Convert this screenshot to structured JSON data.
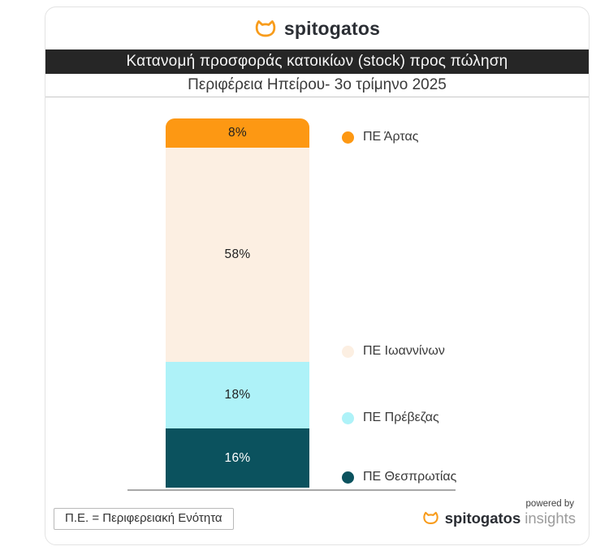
{
  "brand": {
    "logo_text": "spitogatos",
    "accent_color": "#F89C1C"
  },
  "header": {
    "banner_title": "Κατανομή προσφοράς κατοικίων (stock) προς πώληση",
    "subtitle": "Περιφέρεια Ηπείρου- 3ο τρίμηνο 2025"
  },
  "chart_data": {
    "type": "bar",
    "stacked": true,
    "orientation": "vertical",
    "title": "Κατανομή προσφοράς κατοικίων (stock) προς πώληση",
    "subtitle": "Περιφέρεια Ηπείρου- 3ο τρίμηνο 2025",
    "value_unit": "%",
    "legend_position": "right",
    "categories": [
      "ΠΕ Άρτας",
      "ΠΕ Ιωαννίνων",
      "ΠΕ Πρέβεζας",
      "ΠΕ Θεσπρωτίας"
    ],
    "values": [
      8,
      58,
      18,
      16
    ],
    "colors": [
      "#FD9813",
      "#FCEFE2",
      "#AEF2F8",
      "#0B525E"
    ],
    "label_colors": [
      "#1f1f1f",
      "#1f1f1f",
      "#1f1f1f",
      "#ffffff"
    ],
    "ylim": [
      0,
      100
    ],
    "grid": false
  },
  "footer": {
    "note": "Π.Ε. = Περιφερειακή Ενότητα",
    "powered_by": "powered by",
    "brand_bold": "spitogatos",
    "brand_light": "insights"
  }
}
